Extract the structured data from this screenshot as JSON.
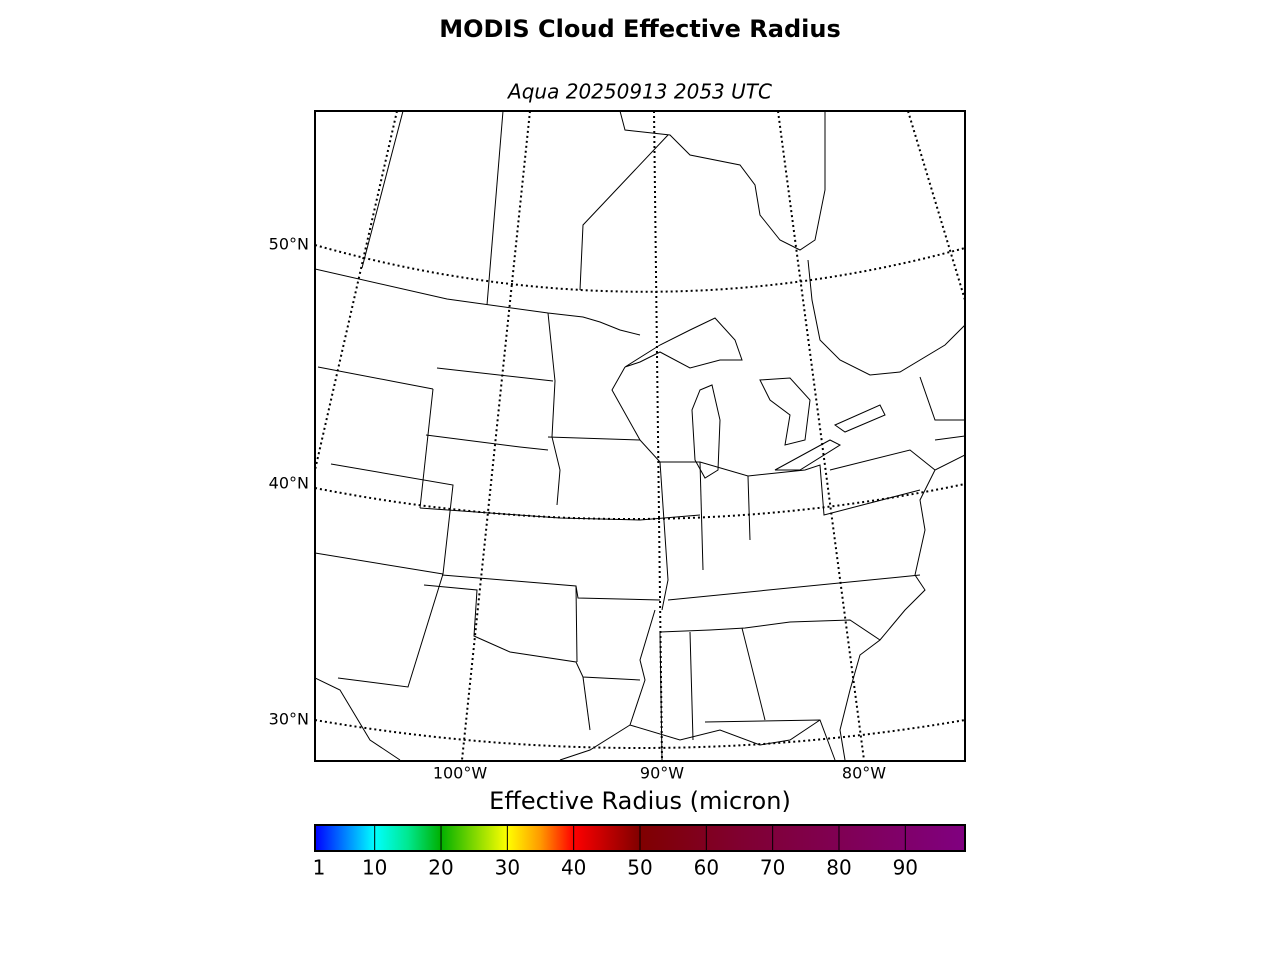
{
  "title": "MODIS Cloud Effective Radius",
  "subtitle": "Aqua 20250913 2053 UTC",
  "map": {
    "parallel_labels": [
      "50°N",
      "40°N",
      "30°N"
    ],
    "meridian_labels": [
      "100°W",
      "90°W",
      "80°W"
    ]
  },
  "colorbar": {
    "label": "Effective Radius (micron)",
    "lim": [
      1,
      99
    ],
    "ticks": [
      1,
      10,
      20,
      30,
      40,
      50,
      60,
      70,
      80,
      90
    ],
    "colors": [
      {
        "value": 1,
        "color": "#0000ff"
      },
      {
        "value": 10,
        "color": "#00ffff"
      },
      {
        "value": 15,
        "color": "#00e890"
      },
      {
        "value": 20,
        "color": "#00b000"
      },
      {
        "value": 30,
        "color": "#ffff00"
      },
      {
        "value": 35,
        "color": "#ff9900"
      },
      {
        "value": 40,
        "color": "#ff0000"
      },
      {
        "value": 50,
        "color": "#800000"
      },
      {
        "value": 65,
        "color": "#800030"
      },
      {
        "value": 99,
        "color": "#800080"
      }
    ]
  }
}
